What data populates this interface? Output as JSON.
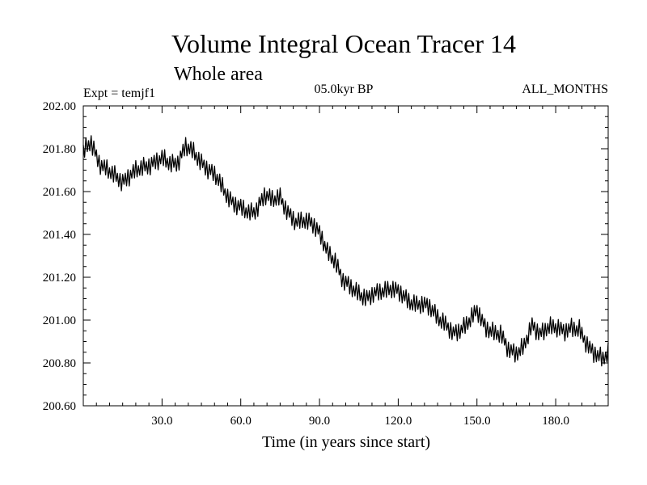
{
  "chart_data": {
    "type": "line",
    "title": "Volume Integral Ocean Tracer 14",
    "subtitle": "Whole area",
    "annotations": {
      "experiment": "Expt = temjf1",
      "period": "05.0kyr BP",
      "months": "ALL_MONTHS"
    },
    "xlabel": "Time (in years since start)",
    "ylabel": "",
    "xlim": [
      0,
      200
    ],
    "ylim": [
      200.6,
      202.0
    ],
    "x_ticks": [
      30,
      60,
      90,
      120,
      150,
      180
    ],
    "x_tick_labels": [
      "30.0",
      "60.0",
      "90.0",
      "120.0",
      "150.0",
      "180.0"
    ],
    "y_ticks": [
      200.6,
      200.8,
      201.0,
      201.2,
      201.4,
      201.6,
      201.8,
      202.0
    ],
    "y_tick_labels": [
      "200.60",
      "200.80",
      "201.00",
      "201.20",
      "201.40",
      "201.60",
      "201.80",
      "202.00"
    ],
    "grid": false,
    "series": [
      {
        "name": "Volume Integral Ocean Tracer 14",
        "seasonal_amplitude": 0.04,
        "x": [
          0,
          3,
          6,
          9,
          12,
          15,
          18,
          21,
          24,
          27,
          30,
          33,
          36,
          39,
          42,
          45,
          48,
          51,
          54,
          57,
          60,
          63,
          66,
          69,
          72,
          75,
          78,
          81,
          84,
          87,
          90,
          93,
          96,
          99,
          102,
          105,
          108,
          111,
          114,
          117,
          120,
          123,
          126,
          129,
          132,
          135,
          138,
          141,
          144,
          147,
          150,
          153,
          156,
          159,
          162,
          165,
          168,
          171,
          174,
          177,
          180,
          183,
          186,
          189,
          192,
          195,
          198,
          200
        ],
        "y": [
          201.78,
          201.83,
          201.74,
          201.7,
          201.67,
          201.65,
          201.68,
          201.7,
          201.72,
          201.74,
          201.75,
          201.73,
          201.74,
          201.81,
          201.78,
          201.74,
          201.7,
          201.66,
          201.6,
          201.55,
          201.52,
          201.5,
          201.52,
          201.58,
          201.56,
          201.58,
          201.5,
          201.45,
          201.47,
          201.46,
          201.4,
          201.32,
          201.28,
          201.18,
          201.15,
          201.13,
          201.1,
          201.12,
          201.14,
          201.15,
          201.13,
          201.1,
          201.08,
          201.07,
          201.06,
          201.02,
          200.98,
          200.93,
          200.96,
          201.0,
          201.04,
          200.97,
          200.95,
          200.93,
          200.86,
          200.85,
          200.88,
          200.97,
          200.94,
          200.97,
          200.96,
          200.95,
          200.97,
          200.95,
          200.88,
          200.85,
          200.82,
          200.84
        ]
      }
    ]
  }
}
